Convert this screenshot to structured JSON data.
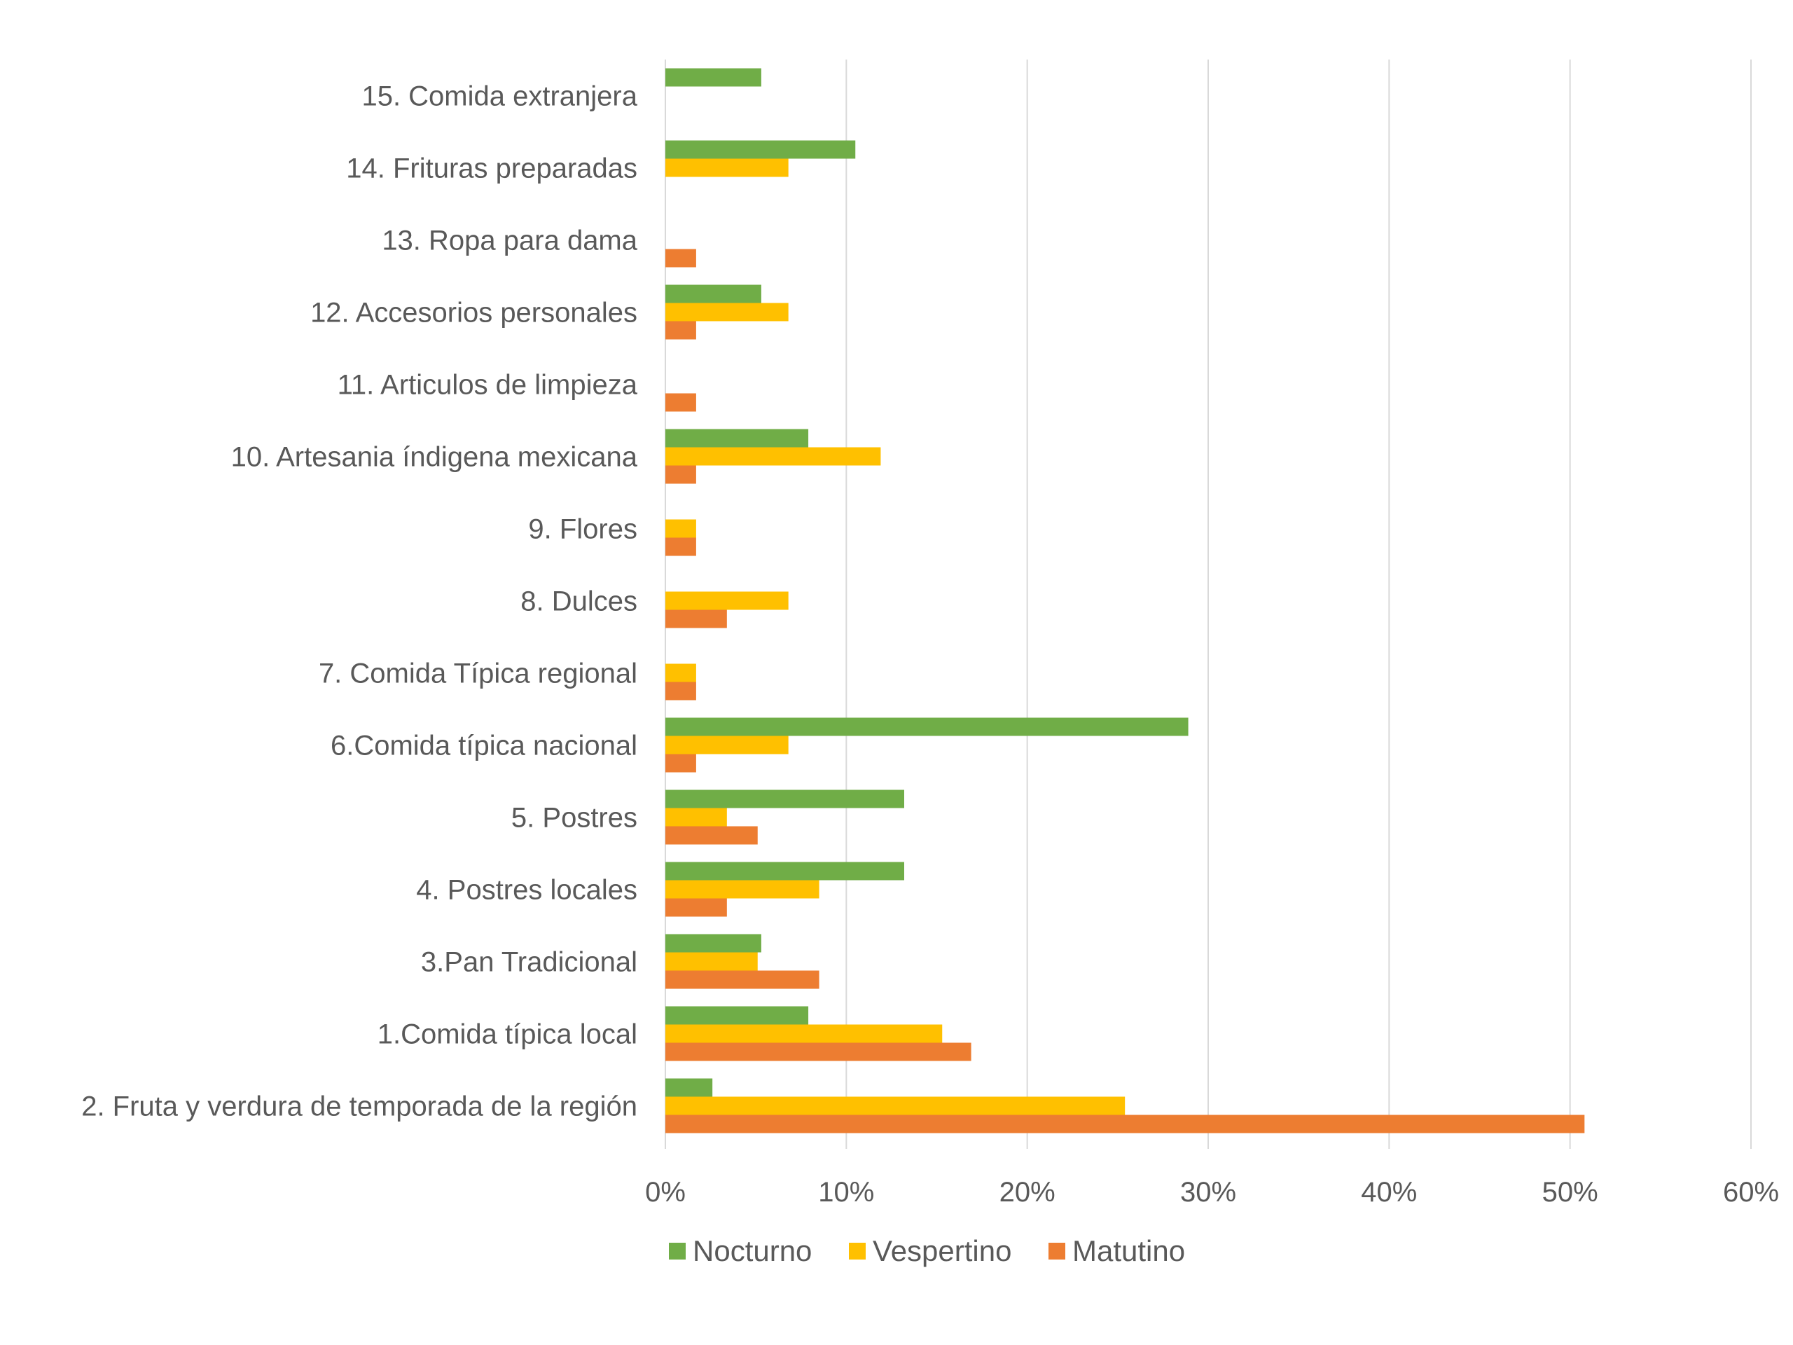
{
  "chart_data": {
    "type": "bar",
    "orientation": "horizontal",
    "title": "",
    "xlabel": "",
    "ylabel": "",
    "xlim": [
      0,
      60
    ],
    "x_tick_labels": [
      "0%",
      "10%",
      "20%",
      "30%",
      "40%",
      "50%",
      "60%"
    ],
    "grid": true,
    "legend_position": "bottom",
    "categories": [
      "15. Comida extranjera",
      "14. Frituras preparadas",
      "13. Ropa para dama",
      "12. Accesorios personales",
      "11. Articulos de limpieza",
      "10. Artesania índigena mexicana",
      "9. Flores",
      "8. Dulces",
      "7. Comida Típica regional",
      "6.Comida típica nacional",
      "5. Postres",
      "4. Postres locales",
      "3.Pan Tradicional",
      "1.Comida típica local",
      "2. Fruta y verdura de temporada de la región"
    ],
    "series": [
      {
        "name": "Nocturno",
        "color": "#70ad47",
        "values": [
          5.3,
          10.5,
          0,
          5.3,
          0,
          7.9,
          0,
          0,
          0,
          28.9,
          13.2,
          13.2,
          5.3,
          7.9,
          2.6
        ]
      },
      {
        "name": "Vespertino",
        "color": "#ffc000",
        "values": [
          0,
          6.8,
          0,
          6.8,
          0,
          11.9,
          1.7,
          6.8,
          1.7,
          6.8,
          3.4,
          8.5,
          5.1,
          15.3,
          25.4
        ]
      },
      {
        "name": "Matutino",
        "color": "#ed7d31",
        "values": [
          0,
          0,
          1.7,
          1.7,
          1.7,
          1.7,
          1.7,
          3.4,
          1.7,
          1.7,
          5.1,
          3.4,
          8.5,
          16.9,
          50.8
        ]
      }
    ]
  }
}
